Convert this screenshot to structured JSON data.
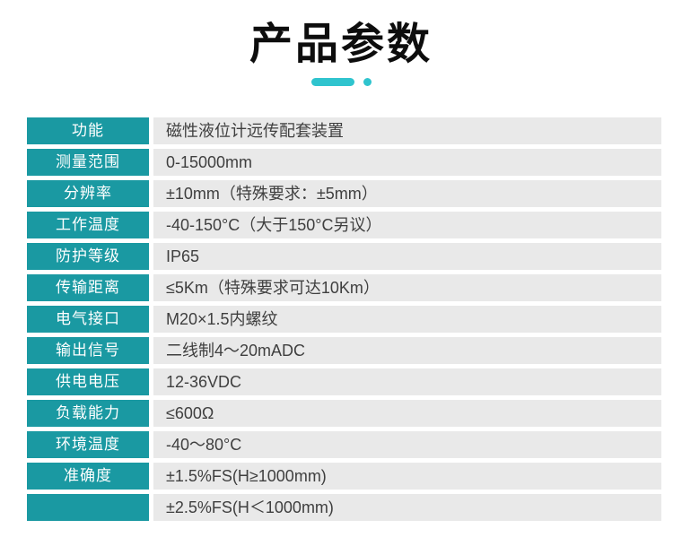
{
  "header": {
    "title": "产品参数",
    "accent_color": "#2fc4ce"
  },
  "table": {
    "label_bg_color": "#1a99a2",
    "label_text_color": "#ffffff",
    "value_bg_color": "#e9e9e9",
    "value_text_color": "#3f3f3f",
    "rows": [
      {
        "label": "功能",
        "value": "磁性液位计远传配套装置"
      },
      {
        "label": "测量范围",
        "value": "0-15000mm"
      },
      {
        "label": "分辨率",
        "value": "±10mm（特殊要求：±5mm）"
      },
      {
        "label": "工作温度",
        "value": "-40-150°C（大于150°C另议）"
      },
      {
        "label": "防护等级",
        "value": "IP65"
      },
      {
        "label": "传输距离",
        "value": "≤5Km（特殊要求可达10Km）"
      },
      {
        "label": "电气接口",
        "value": "M20×1.5内螺纹"
      },
      {
        "label": "输出信号",
        "value": "二线制4～20mADC"
      },
      {
        "label": "供电电压",
        "value": "12-36VDC"
      },
      {
        "label": "负载能力",
        "value": "≤600Ω"
      },
      {
        "label": "环境温度",
        "value": "-40～80°C"
      },
      {
        "label": "准确度",
        "value": "±1.5%FS(H≥1000mm)"
      },
      {
        "label": "",
        "value": "±2.5%FS(H＜1000mm)"
      }
    ]
  }
}
